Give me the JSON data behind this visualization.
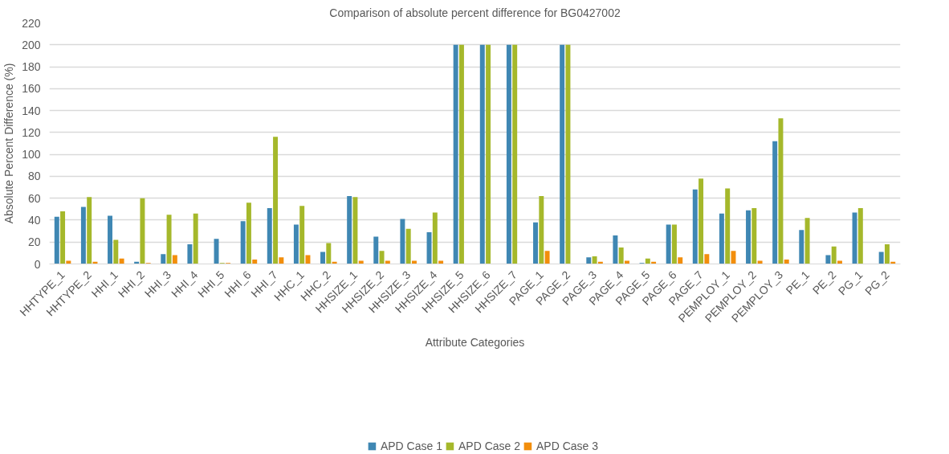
{
  "chart_data": {
    "type": "bar",
    "title": "Comparison of absolute percent difference for BG0427002",
    "xlabel": "Attribute Categories",
    "ylabel": "Absolute Percent Difference (%)",
    "categories": [
      "HHTYPE_1",
      "HHTYPE_2",
      "HHI_1",
      "HHI_2",
      "HHI_3",
      "HHI_4",
      "HHI_5",
      "HHI_6",
      "HHI_7",
      "HHC_1",
      "HHC_2",
      "HHSIZE_1",
      "HHSIZE_2",
      "HHSIZE_3",
      "HHSIZE_4",
      "HHSIZE_5",
      "HHSIZE_6",
      "HHSIZE_7",
      "PAGE_1",
      "PAGE_2",
      "PAGE_3",
      "PAGE_4",
      "PAGE_5",
      "PAGE_6",
      "PAGE_7",
      "PEMPLOY_1",
      "PEMPLOY_2",
      "PEMPLOY_3",
      "PE_1",
      "PE_2",
      "PG_1",
      "PG_2"
    ],
    "series": [
      {
        "name": "APD Case 1",
        "color": "#3f87b3",
        "values": [
          43,
          52,
          44,
          2,
          9,
          18,
          23,
          39,
          51,
          36,
          11,
          62,
          25,
          41,
          29,
          200,
          200,
          200,
          38,
          200,
          6,
          26,
          1,
          36,
          68,
          46,
          49,
          112,
          31,
          8,
          47,
          11
        ]
      },
      {
        "name": "APD Case 2",
        "color": "#a5b82b",
        "values": [
          48,
          61,
          22,
          60,
          45,
          46,
          1,
          56,
          116,
          53,
          19,
          61,
          12,
          32,
          47,
          200,
          200,
          200,
          62,
          200,
          7,
          15,
          5,
          36,
          78,
          69,
          51,
          133,
          42,
          16,
          51,
          18
        ]
      },
      {
        "name": "APD Case 3",
        "color": "#f28e0c",
        "values": [
          3,
          2,
          5,
          1,
          8,
          0,
          1,
          4,
          6,
          8,
          2,
          3,
          3,
          3,
          3,
          0,
          0,
          0,
          12,
          0,
          2,
          3,
          2,
          6,
          9,
          12,
          3,
          4,
          0,
          3,
          0,
          2
        ]
      }
    ],
    "ylim": [
      0,
      220
    ],
    "yticks": [
      0,
      20,
      40,
      60,
      80,
      100,
      120,
      140,
      160,
      180,
      200,
      220
    ],
    "grid": "y",
    "legend": "bottom"
  }
}
